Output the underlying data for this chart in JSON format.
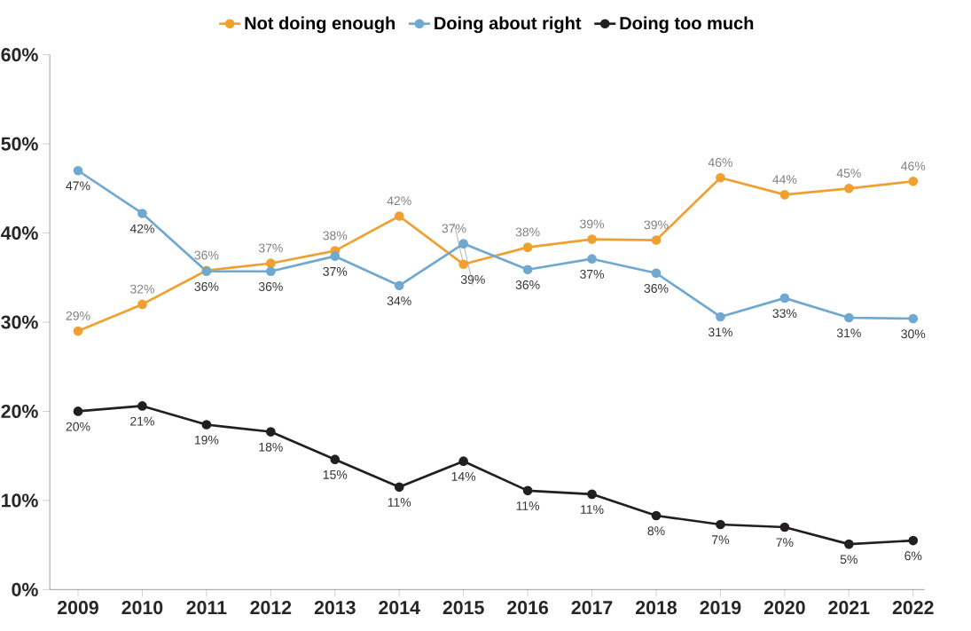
{
  "chart_data": {
    "type": "line",
    "categories": [
      "2009",
      "2010",
      "2011",
      "2012",
      "2013",
      "2014",
      "2015",
      "2016",
      "2017",
      "2018",
      "2019",
      "2020",
      "2021",
      "2022"
    ],
    "series": [
      {
        "name": "Not doing enough",
        "color": "#f0a030",
        "values": [
          29,
          32,
          35.8,
          36.6,
          38,
          41.9,
          36.5,
          38.4,
          39.3,
          39.2,
          46.2,
          44.3,
          45,
          45.8
        ],
        "value_labels": [
          "29%",
          "32%",
          "36%",
          "37%",
          "38%",
          "42%",
          "37%",
          "38%",
          "39%",
          "39%",
          "46%",
          "44%",
          "45%",
          "46%"
        ]
      },
      {
        "name": "Doing about right",
        "color": "#6fa8d0",
        "values": [
          47,
          42.2,
          35.7,
          35.7,
          37.4,
          34.1,
          38.8,
          35.9,
          37.1,
          35.5,
          30.6,
          32.7,
          30.5,
          30.4
        ],
        "value_labels": [
          "47%",
          "42%",
          "36%",
          "36%",
          "37%",
          "34%",
          "39%",
          "36%",
          "37%",
          "36%",
          "31%",
          "33%",
          "31%",
          "30%"
        ]
      },
      {
        "name": "Doing too much",
        "color": "#231f20",
        "values": [
          20,
          20.6,
          18.5,
          17.7,
          14.6,
          11.5,
          14.4,
          11.1,
          10.7,
          8.3,
          7.3,
          7.0,
          5.1,
          5.5
        ],
        "value_labels": [
          "20%",
          "21%",
          "19%",
          "18%",
          "15%",
          "11%",
          "14%",
          "11%",
          "11%",
          "8%",
          "7%",
          "7%",
          "5%",
          "6%"
        ]
      }
    ],
    "ylim": [
      0,
      60
    ],
    "yticks": [
      {
        "value": 0,
        "label": "0%"
      },
      {
        "value": 10,
        "label": "10%"
      },
      {
        "value": 20,
        "label": "20%"
      },
      {
        "value": 30,
        "label": "30%"
      },
      {
        "value": 40,
        "label": "40%"
      },
      {
        "value": 50,
        "label": "50%"
      },
      {
        "value": 60,
        "label": "60%"
      }
    ],
    "legend": "top",
    "marker": "circle",
    "line_style": "solid",
    "grid": false
  }
}
